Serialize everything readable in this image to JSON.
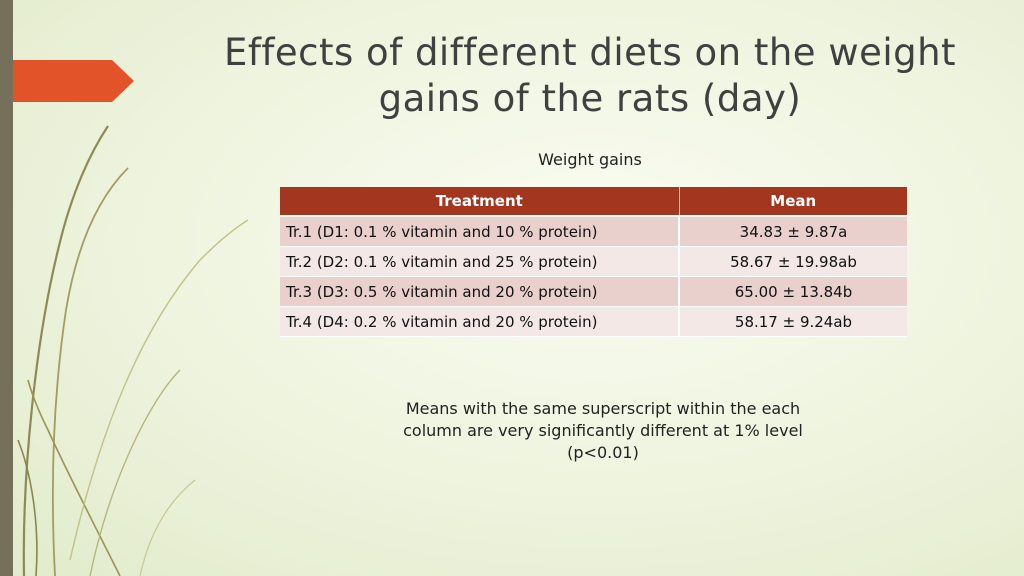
{
  "slide": {
    "title_line1": "Effects of different diets on the weight",
    "title_line2": "gains of the rats (day)"
  },
  "table": {
    "caption": "Weight gains",
    "headers": [
      "Treatment",
      "Mean"
    ],
    "rows": [
      [
        "Tr.1 (D1: 0.1 % vitamin and 10 % protein)",
        "34.83 ± 9.87a"
      ],
      [
        "Tr.2 (D2: 0.1 % vitamin and 25 % protein)",
        "58.67 ± 19.98ab"
      ],
      [
        "Tr.3 (D3: 0.5 % vitamin and 20 % protein)",
        "65.00 ± 13.84b"
      ],
      [
        "Tr.4 (D4: 0.2 % vitamin and 20 % protein)",
        "58.17 ± 9.24ab"
      ]
    ]
  },
  "note": {
    "line1": "Means with the same superscript within the each",
    "line2": "column are very significantly different at 1% level",
    "line3": "(p<0.01)"
  },
  "colors": {
    "header_bg": "#a3361e",
    "accent_arrow": "#e2532a",
    "left_bar": "#75705a",
    "row_odd": "#ead0cc",
    "row_even": "#f4e8e6"
  }
}
